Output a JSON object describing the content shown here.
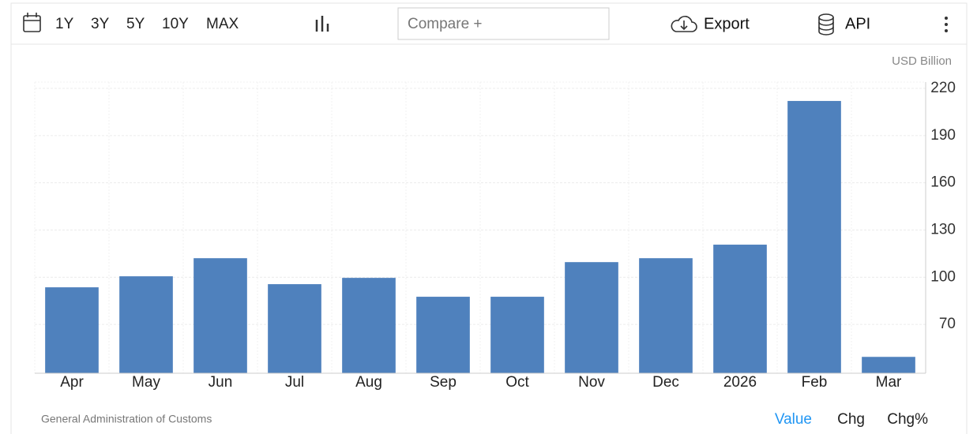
{
  "toolbar": {
    "ranges": [
      "1Y",
      "3Y",
      "5Y",
      "10Y",
      "MAX"
    ],
    "compare": "Compare +",
    "export": "Export",
    "api": "API"
  },
  "chart_data": {
    "type": "bar",
    "unit": "USD Billion",
    "categories": [
      "Apr",
      "May",
      "Jun",
      "Jul",
      "Aug",
      "Sep",
      "Oct",
      "Nov",
      "Dec",
      "2026",
      "Feb",
      "Mar"
    ],
    "values": [
      93.6,
      100.6,
      112.1,
      95.6,
      99.6,
      87.6,
      87.6,
      109.6,
      112.1,
      120.7,
      212.0,
      49.4
    ],
    "color": "#4f81bd",
    "ylim": [
      39,
      224
    ],
    "yticks": [
      70,
      100,
      130,
      160,
      190,
      220
    ],
    "grid": true
  },
  "footer": {
    "source": "General Administration of Customs",
    "tabs": [
      "Value",
      "Chg",
      "Chg%"
    ]
  }
}
